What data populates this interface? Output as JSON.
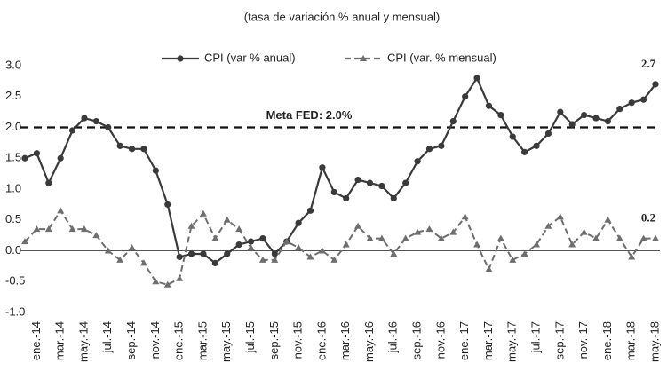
{
  "chart_data": {
    "type": "line",
    "title": "(tasa de variación % anual y mensual)",
    "categories": [
      null,
      "ene.-14",
      null,
      "mar.-14",
      null,
      "may.-14",
      null,
      "jul.-14",
      null,
      "sep.-14",
      null,
      "nov.-14",
      null,
      "ene.-15",
      null,
      "mar.-15",
      null,
      "may.-15",
      null,
      "jul.-15",
      null,
      "sep.-15",
      null,
      "nov.-15",
      null,
      "ene.-16",
      null,
      "mar.-16",
      null,
      "may.-16",
      null,
      "jul.-16",
      null,
      "sep.-16",
      null,
      "nov.-16",
      null,
      "ene.-17",
      null,
      "mar.-17",
      null,
      "may.-17",
      null,
      "jul.-17",
      null,
      "sep.-17",
      null,
      "nov.-17",
      null,
      "ene.-18",
      null,
      "mar.-18",
      null,
      "may.-18"
    ],
    "series": [
      {
        "name": "CPI (var % anual)",
        "color": "#3a3a3a",
        "dashed": false,
        "marker": "circle",
        "values": [
          1.5,
          1.58,
          1.1,
          1.5,
          1.95,
          2.15,
          2.1,
          2.0,
          1.7,
          1.65,
          1.65,
          1.3,
          0.75,
          -0.1,
          -0.05,
          -0.05,
          -0.2,
          -0.05,
          0.1,
          0.15,
          0.2,
          -0.05,
          0.15,
          0.45,
          0.65,
          1.35,
          0.95,
          0.85,
          1.15,
          1.1,
          1.05,
          0.85,
          1.1,
          1.45,
          1.65,
          1.7,
          2.1,
          2.5,
          2.8,
          2.35,
          2.2,
          1.85,
          1.6,
          1.7,
          1.9,
          2.25,
          2.05,
          2.2,
          2.15,
          2.1,
          2.3,
          2.4,
          2.45,
          2.7
        ]
      },
      {
        "name": "CPI (var. % mensual)",
        "color": "#6e6e6e",
        "dashed": true,
        "marker": "triangle",
        "values": [
          0.15,
          0.35,
          0.35,
          0.65,
          0.35,
          0.35,
          0.25,
          0.0,
          -0.15,
          0.05,
          -0.2,
          -0.5,
          -0.55,
          -0.45,
          0.4,
          0.6,
          0.2,
          0.5,
          0.35,
          0.05,
          -0.15,
          -0.15,
          0.15,
          0.05,
          -0.1,
          0.0,
          -0.15,
          0.1,
          0.4,
          0.2,
          0.2,
          -0.05,
          0.2,
          0.3,
          0.35,
          0.2,
          0.3,
          0.55,
          0.1,
          -0.3,
          0.2,
          -0.15,
          -0.05,
          0.1,
          0.4,
          0.55,
          0.1,
          0.3,
          0.2,
          0.5,
          0.2,
          -0.1,
          0.2,
          0.2
        ]
      }
    ],
    "reference_line": {
      "value": 2.0,
      "label": "Meta FED: 2.0%"
    },
    "ylim": [
      -1,
      3
    ],
    "yticks": [
      {
        "value": 3,
        "label": "3.0"
      },
      2.5,
      {
        "value": 2,
        "label": "2.0"
      },
      1.5,
      {
        "value": 1,
        "label": "1.0"
      },
      0.5,
      {
        "value": 0,
        "label": "0.0"
      },
      -0.5,
      {
        "value": -1,
        "label": "-1.0"
      }
    ],
    "grid": false,
    "legend": "top"
  }
}
